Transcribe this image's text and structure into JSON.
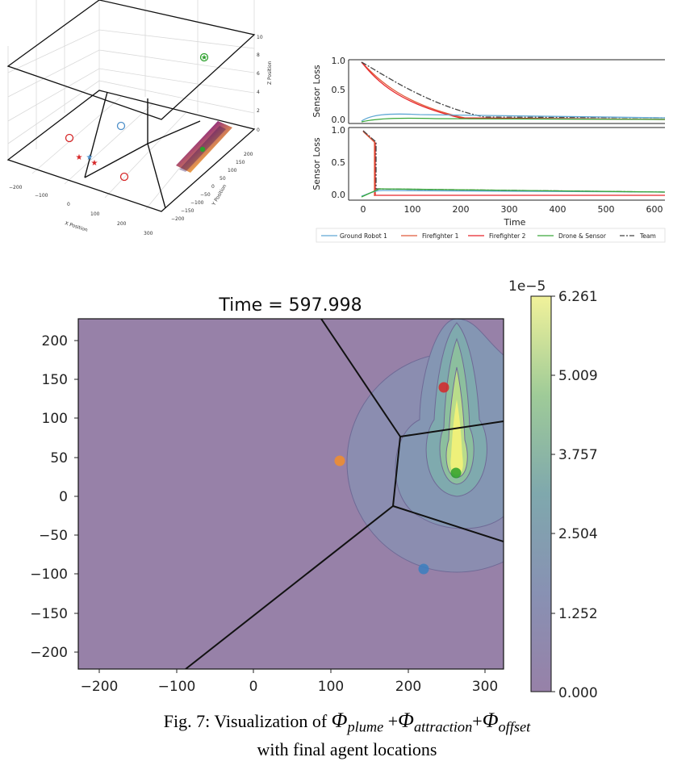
{
  "chart_data": [
    {
      "type": "scatter",
      "projection": "3d",
      "axis_labels": {
        "x": "X Position",
        "y": "Y Position",
        "z": "Z Position"
      },
      "x_ticks": [
        "−200",
        "−100",
        "0",
        "100",
        "200",
        "300"
      ],
      "y_ticks": [
        "−200",
        "−150",
        "−100",
        "−50",
        "0",
        "50",
        "100",
        "150",
        "200"
      ],
      "z_ticks": [
        "0",
        "2",
        "4",
        "6",
        "8",
        "10"
      ],
      "colors": {
        "ground_robot": "#4e8fc9",
        "firefighter": "#d62728",
        "drone": "#2ca02c",
        "plume": [
          "#2d0a57",
          "#8a1e79",
          "#f2a43a",
          "#f6f06a"
        ]
      }
    },
    {
      "type": "line",
      "panels": 2,
      "ylabel": "Sensor Loss",
      "xlabel": "Time",
      "x_ticks": [
        "0",
        "100",
        "200",
        "300",
        "400",
        "500",
        "600"
      ],
      "y_ticks": [
        "0.0",
        "0.5",
        "1.0"
      ],
      "xlim": [
        -25,
        625
      ],
      "ylim": [
        -0.05,
        1.05
      ],
      "series": [
        {
          "name": "Ground Robot 1",
          "color": "#5fa8d3"
        },
        {
          "name": "Firefighter 1",
          "color": "#e05a3a"
        },
        {
          "name": "Firefighter 2",
          "color": "#e8242a"
        },
        {
          "name": "Drone & Sensor",
          "color": "#3aa83a"
        },
        {
          "name": "Team",
          "color": "#444444"
        }
      ]
    },
    {
      "type": "heatmap",
      "title": "Time = 597.998",
      "xlim": [
        -225,
        325
      ],
      "ylim": [
        -225,
        225
      ],
      "x_ticks": [
        "−200",
        "−100",
        "0",
        "100",
        "200",
        "300"
      ],
      "y_ticks": [
        "200",
        "150",
        "100",
        "50",
        "0",
        "−50",
        "−100",
        "−150",
        "−200"
      ],
      "colorbar": {
        "exponent": "1e−5",
        "ticks": [
          "6.261",
          "5.009",
          "3.757",
          "2.504",
          "1.252",
          "0.000"
        ],
        "max": 6.261,
        "min": 0.0
      },
      "agents": [
        {
          "x": 248,
          "y": 137,
          "color": "#d62728"
        },
        {
          "x": 113,
          "y": 42,
          "color": "#f28e2b"
        },
        {
          "x": 262,
          "y": 28,
          "color": "#2ca02c"
        },
        {
          "x": 220,
          "y": -95,
          "color": "#3a7fc0"
        }
      ],
      "voronoi_vertices": [
        [
          188,
          -12
        ],
        [
          196,
          75
        ]
      ],
      "caption_line1": "Fig. 7: Visualization of Φplume + Φattraction+Φoffset",
      "caption_line2": "with final agent locations",
      "caption_parts": {
        "fig": "Fig. 7: Visualization of ",
        "phi": "Φ",
        "plume": "plume",
        "attraction": "attraction",
        "offset": "offset",
        "plus": "+"
      }
    }
  ]
}
